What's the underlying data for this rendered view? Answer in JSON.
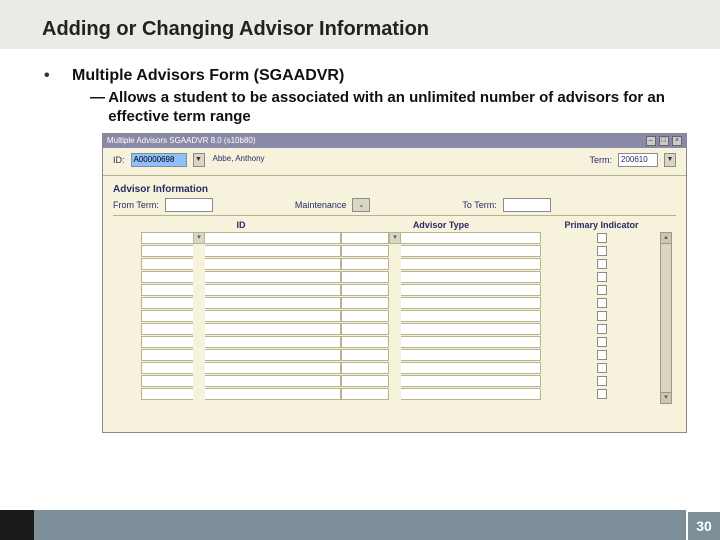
{
  "title": "Adding or Changing Advisor Information",
  "bullets": {
    "b1": "Multiple Advisors Form (SGAADVR)",
    "b2": "Allows a student to be associated with an unlimited number of advisors for an effective term range"
  },
  "window": {
    "titlebar": "Multiple Advisors  SGAADVR 8.0  (s10b80)",
    "close": "×",
    "max": "□",
    "min": "–"
  },
  "header": {
    "id_label": "ID:",
    "id_value": "A00000698",
    "name_value": "Abbe, Anthony",
    "term_label": "Term:",
    "term_value": "200610"
  },
  "section": {
    "title": "Advisor Information",
    "from_label": "From Term:",
    "maint_label": "Maintenance",
    "to_label": "To Term:"
  },
  "columns": {
    "id": "ID",
    "type": "Advisor Type",
    "primary": "Primary Indicator"
  },
  "grid": {
    "row_count": 13
  },
  "footer": {
    "page": "30"
  },
  "colors": {
    "form_bg": "#f6f2db",
    "band_bg": "#eceae6",
    "footer_bg": "#7e8e99",
    "footer_dark": "#1a1a1a",
    "highlight": "#8fc0ff"
  }
}
